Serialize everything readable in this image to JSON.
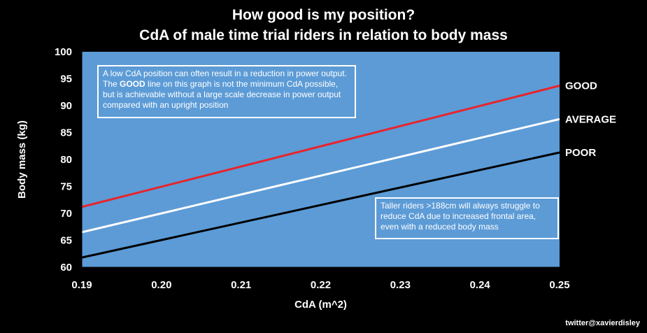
{
  "chart_data": {
    "type": "line",
    "title": "How good is my position?",
    "subtitle": "CdA of male time trial riders in relation to body mass",
    "xlabel": "CdA (m^2)",
    "ylabel": "Body mass (kg)",
    "xlim": [
      0.19,
      0.25
    ],
    "ylim": [
      60,
      100
    ],
    "x_ticks": [
      "0.19",
      "0.20",
      "0.21",
      "0.22",
      "0.23",
      "0.24",
      "0.25"
    ],
    "y_ticks": [
      "60",
      "65",
      "70",
      "75",
      "80",
      "85",
      "90",
      "95",
      "100"
    ],
    "grid": false,
    "plot_background": "#5c9bd6",
    "series": [
      {
        "name": "GOOD",
        "color": "#e8242b",
        "x": [
          0.19,
          0.25
        ],
        "y": [
          71.2,
          93.7
        ]
      },
      {
        "name": "AVERAGE",
        "color": "#ffffff",
        "x": [
          0.19,
          0.25
        ],
        "y": [
          66.5,
          87.5
        ]
      },
      {
        "name": "POOR",
        "color": "#000000",
        "x": [
          0.19,
          0.25
        ],
        "y": [
          61.8,
          81.3
        ]
      }
    ],
    "annotations": [
      {
        "pre": "A low CdA position can often result in a reduction in power output. The ",
        "bold": "GOOD",
        "post": " line on this graph is not the minimum CdA possible, but is achievable without a large scale decrease in power output compared with an upright position"
      },
      {
        "text": "Taller riders >188cm will always struggle to reduce CdA due to increased frontal area, even with a reduced body mass"
      }
    ]
  },
  "credit": "twitter@xavierdisley"
}
